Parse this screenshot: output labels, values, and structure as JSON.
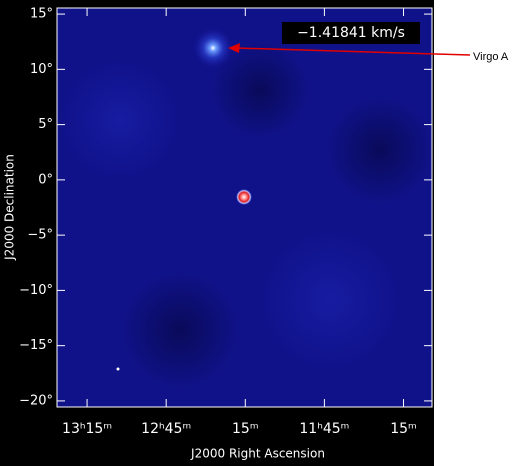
{
  "chart_data": {
    "type": "image",
    "xlabel": "J2000 Right Ascension",
    "ylabel": "J2000 Declination",
    "velocity_label": "−1.41841 km/s",
    "annotation": "Virgo A",
    "xlim": [
      13.44,
      11.07
    ],
    "xticks": [
      {
        "value": 13.25,
        "label": "13ʰ15ᵐ"
      },
      {
        "value": 12.75,
        "label": "12ʰ45ᵐ"
      },
      {
        "value": 12.25,
        "label": "15ᵐ"
      },
      {
        "value": 11.75,
        "label": "11ʰ45ᵐ"
      },
      {
        "value": 11.25,
        "label": "15ᵐ"
      }
    ],
    "ylim": [
      -20.55,
      15.55
    ],
    "yticks": [
      {
        "value": 15,
        "label": "15°"
      },
      {
        "value": 10,
        "label": "10°"
      },
      {
        "value": 5,
        "label": "5°"
      },
      {
        "value": 0,
        "label": "0°"
      },
      {
        "value": -5,
        "label": "−5°"
      },
      {
        "value": -10,
        "label": "−10°"
      },
      {
        "value": -15,
        "label": "−15°"
      },
      {
        "value": -20,
        "label": "−20°"
      }
    ]
  }
}
